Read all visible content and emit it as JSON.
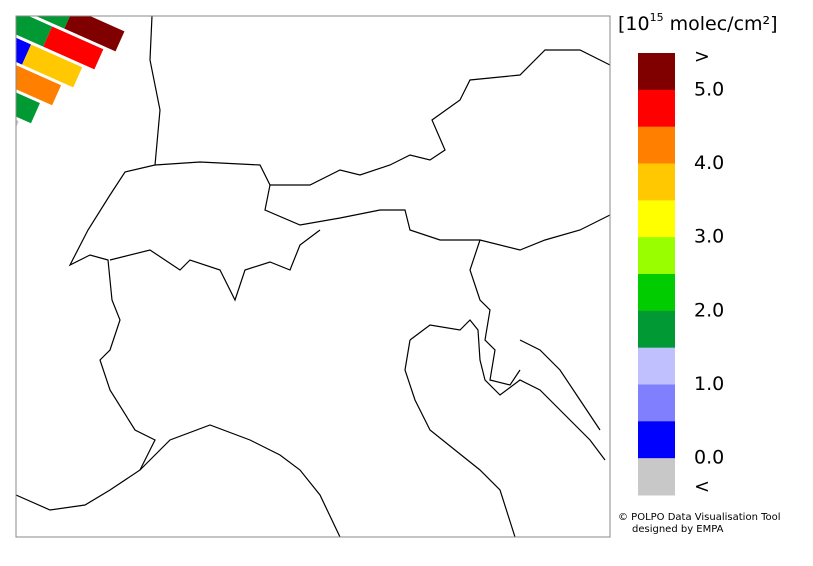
{
  "colorbar": {
    "title_prefix": "[10",
    "title_exponent": "15",
    "title_suffix": " molec/cm²]",
    "colors": [
      "#800000",
      "#ff0000",
      "#ff8000",
      "#ffc800",
      "#ffff00",
      "#99ff00",
      "#00cc00",
      "#009933",
      "#c0c0ff",
      "#8080ff",
      "#0000ff",
      "#c8c8c8"
    ],
    "labels": [
      ">",
      "5.0",
      "4.0",
      "3.0",
      "2.0",
      "1.0",
      "0.0",
      "<"
    ]
  },
  "credit": {
    "line1": "© POLPO Data Visualisation Tool",
    "line2": "designed by EMPA"
  }
}
